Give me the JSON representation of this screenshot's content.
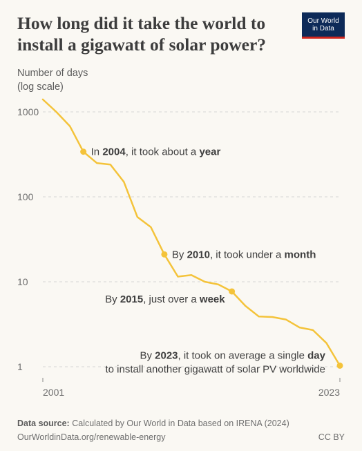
{
  "title": "How long did it take the world to install a gigawatt of solar power?",
  "logo": {
    "line1": "Our World",
    "line2": "in Data"
  },
  "y_axis_label": {
    "line1": "Number of days",
    "line2": "(log scale)"
  },
  "footer": {
    "source_label": "Data source:",
    "source_text": "Calculated by Our World in Data based on IRENA (2024)",
    "url": "OurWorldinData.org/renewable-energy",
    "license": "CC BY"
  },
  "colors": {
    "line": "#f4c33a",
    "text": "#3d3d3d",
    "grid": "#d6d6d6",
    "background": "#faf8f3"
  },
  "chart_data": {
    "type": "line",
    "y_scale": "log",
    "ylim": [
      1,
      1500
    ],
    "xlim": [
      2001,
      2023
    ],
    "y_ticks": [
      1,
      10,
      100,
      1000
    ],
    "y_tick_labels": [
      "1",
      "10",
      "100",
      "1000"
    ],
    "x_tick_labels": [
      "2001",
      "2023"
    ],
    "grid": true,
    "series": [
      {
        "x": [
          2001,
          2002,
          2003,
          2004,
          2005,
          2006,
          2007,
          2008,
          2009,
          2010,
          2011,
          2012,
          2013,
          2014,
          2015,
          2016,
          2017,
          2018,
          2019,
          2020,
          2021,
          2022,
          2023
        ],
        "y": [
          1400,
          1000,
          680,
          340,
          250,
          240,
          150,
          58,
          44,
          21,
          11.5,
          12,
          10,
          9.3,
          7.7,
          5.2,
          3.9,
          3.85,
          3.6,
          2.9,
          2.7,
          1.9,
          1.03
        ]
      }
    ],
    "annotations": [
      {
        "x": 2004,
        "y": 340,
        "pre": "In ",
        "bold1": "2004",
        "mid": ", it took about a ",
        "bold2": "year",
        "post": ""
      },
      {
        "x": 2010,
        "y": 21,
        "pre": "By ",
        "bold1": "2010",
        "mid": ", it took under a ",
        "bold2": "month",
        "post": ""
      },
      {
        "x": 2015,
        "y": 7.7,
        "pre": "By ",
        "bold1": "2015",
        "mid": ", just over a ",
        "bold2": "week",
        "post": ""
      },
      {
        "x": 2023,
        "y": 1.03,
        "pre": "By ",
        "bold1": "2023",
        "mid": ", it took on average a single ",
        "bold2": "day",
        "post": "",
        "line2": "to install another gigawatt of solar PV worldwide"
      }
    ]
  }
}
